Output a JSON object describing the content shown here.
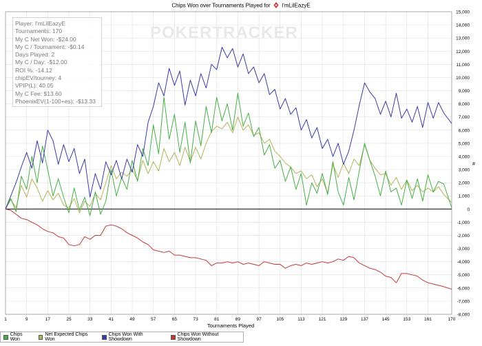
{
  "title_prefix": "Chips Won over Tournaments Played for",
  "player_name": "I'mLilEazyE",
  "watermark": "POKERTRACKER",
  "stats": [
    "Player: I'mLilEazyE",
    "Tournaments: 170",
    "My C Net Won: -$24.00",
    "My C / Tournament: -$0.14",
    "Days Played: 2",
    "My C / Day: -$12.00",
    "ROI %: -14.12",
    "chipEV/tourney: 4",
    "VPIP(L): 40.05",
    "My C Fee: $13.60",
    "PhoenixEV(1-100+es): -$13.33"
  ],
  "colors": {
    "chips_won": "#44b044",
    "net_expected": "#b3b356",
    "with_showdown": "#3a3aa6",
    "without_showdown": "#c03838",
    "grid": "#e2e2e2",
    "zero_line": "#000000"
  },
  "chart_data": {
    "type": "line",
    "title": "Chips Won over Tournaments Played for I'mLilEazyE",
    "xlabel": "Tournaments Played",
    "ylabel": "#",
    "xlim": [
      1,
      170
    ],
    "ylim": [
      -8000,
      15000
    ],
    "x_ticks": [
      1,
      9,
      17,
      25,
      33,
      41,
      49,
      57,
      65,
      73,
      81,
      89,
      97,
      105,
      113,
      121,
      129,
      137,
      145,
      153,
      161,
      170
    ],
    "y_ticks": [
      -8000,
      -7000,
      -6000,
      -5000,
      -4000,
      -3000,
      -2000,
      -1000,
      0,
      1000,
      2000,
      3000,
      4000,
      5000,
      6000,
      7000,
      8000,
      9000,
      10000,
      11000,
      12000,
      13000,
      14000,
      15000
    ],
    "y_tick_labels": [
      "-8,000",
      "-7,000",
      "-6,000",
      "-5,000",
      "-4,000",
      "-3,000",
      "-2,000",
      "-1,000",
      "0",
      "1,000",
      "2,000",
      "3,000",
      "4,000",
      "5,000",
      "6,000",
      "7,000",
      "8,000",
      "9,000",
      "10,000",
      "11,000",
      "12,000",
      "13,000",
      "14,000",
      "15,000"
    ],
    "grid": true,
    "legend_position": "bottom-left",
    "series": [
      {
        "name": "Chips Won",
        "x": [
          1,
          3,
          5,
          7,
          9,
          11,
          13,
          15,
          17,
          19,
          21,
          23,
          25,
          27,
          29,
          31,
          33,
          35,
          37,
          39,
          41,
          43,
          45,
          47,
          49,
          51,
          53,
          55,
          57,
          59,
          61,
          63,
          65,
          67,
          69,
          71,
          73,
          75,
          77,
          79,
          81,
          83,
          85,
          87,
          89,
          91,
          93,
          95,
          97,
          99,
          101,
          103,
          105,
          107,
          109,
          111,
          113,
          115,
          117,
          119,
          121,
          123,
          125,
          127,
          129,
          131,
          133,
          135,
          137,
          139,
          141,
          143,
          145,
          147,
          149,
          151,
          153,
          155,
          157,
          159,
          161,
          163,
          165,
          167,
          170
        ],
        "y": [
          0,
          800,
          -200,
          2500,
          1500,
          4000,
          2000,
          4800,
          3000,
          1000,
          2300,
          900,
          -300,
          1600,
          -100,
          900,
          -500,
          1300,
          -400,
          600,
          3000,
          1000,
          2400,
          1500,
          3700,
          2100,
          4600,
          3300,
          6400,
          4200,
          8500,
          5300,
          7200,
          4300,
          6600,
          3500,
          6700,
          4800,
          7800,
          5800,
          8500,
          6700,
          8000,
          6000,
          8800,
          6300,
          7300,
          5500,
          6200,
          4100,
          4900,
          3100,
          3700,
          2100,
          3200,
          1500,
          2700,
          300,
          2000,
          1200,
          2700,
          1100,
          3600,
          1300,
          300,
          2400,
          700,
          2900,
          5000,
          3700,
          2500,
          1000,
          2900,
          1300,
          1600,
          300,
          2200,
          800,
          2300,
          600,
          2600,
          1300,
          2100,
          1900,
          100
        ]
      },
      {
        "name": "Net Expected Chips Won",
        "x": [
          1,
          3,
          5,
          7,
          9,
          11,
          13,
          15,
          17,
          19,
          21,
          23,
          25,
          27,
          29,
          31,
          33,
          35,
          37,
          39,
          41,
          43,
          45,
          47,
          49,
          51,
          53,
          55,
          57,
          59,
          61,
          63,
          65,
          67,
          69,
          71,
          73,
          75,
          77,
          79,
          81,
          83,
          85,
          87,
          89,
          91,
          93,
          95,
          97,
          99,
          101,
          103,
          105,
          107,
          109,
          111,
          113,
          115,
          117,
          119,
          121,
          123,
          125,
          127,
          129,
          131,
          133,
          135,
          137,
          139,
          141,
          143,
          145,
          147,
          149,
          151,
          153,
          155,
          157,
          159,
          161,
          163,
          165,
          167,
          170
        ],
        "y": [
          0,
          700,
          100,
          1800,
          900,
          2300,
          1600,
          600,
          1400,
          700,
          1200,
          300,
          100,
          800,
          -300,
          600,
          200,
          1200,
          700,
          2000,
          3300,
          2300,
          2800,
          2500,
          3000,
          2200,
          3700,
          2700,
          3600,
          2900,
          4600,
          3600,
          4300,
          3300,
          4700,
          3600,
          4700,
          3800,
          5000,
          5900,
          6300,
          6100,
          6600,
          5800,
          7000,
          6000,
          6400,
          5600,
          5800,
          5000,
          5300,
          4400,
          4000,
          3500,
          3200,
          2700,
          2900,
          2300,
          2600,
          1700,
          2300,
          1200,
          3400,
          2400,
          3500,
          2700,
          3800,
          3300,
          4900,
          3700,
          3100,
          2600,
          2700,
          1800,
          2400,
          1500,
          2200,
          1400,
          1800,
          1300,
          1600,
          1300,
          1700,
          1100,
          500
        ]
      },
      {
        "name": "Chips Won With Showdown",
        "x": [
          1,
          3,
          5,
          7,
          9,
          11,
          13,
          15,
          17,
          19,
          21,
          23,
          25,
          27,
          29,
          31,
          33,
          35,
          37,
          39,
          41,
          43,
          45,
          47,
          49,
          51,
          53,
          55,
          57,
          59,
          61,
          63,
          65,
          67,
          69,
          71,
          73,
          75,
          77,
          79,
          81,
          83,
          85,
          87,
          89,
          91,
          93,
          95,
          97,
          99,
          101,
          103,
          105,
          107,
          109,
          111,
          113,
          115,
          117,
          119,
          121,
          123,
          125,
          127,
          129,
          131,
          133,
          135,
          137,
          139,
          141,
          143,
          145,
          147,
          149,
          151,
          153,
          155,
          157,
          159,
          161,
          163,
          165,
          167,
          170
        ],
        "y": [
          0,
          1000,
          2000,
          3200,
          4300,
          3100,
          5200,
          3500,
          6000,
          5200,
          3400,
          4900,
          3600,
          4600,
          2700,
          3800,
          900,
          2700,
          1500,
          3600,
          2600,
          3700,
          2300,
          3800,
          2800,
          4900,
          4000,
          6600,
          7800,
          9600,
          8600,
          10700,
          9400,
          10500,
          7900,
          9800,
          8600,
          10300,
          9200,
          11000,
          10600,
          12300,
          11500,
          12200,
          10800,
          11800,
          10300,
          10800,
          9600,
          10300,
          8700,
          9100,
          7600,
          8400,
          7200,
          7700,
          6000,
          6800,
          5400,
          6200,
          4600,
          5300,
          4000,
          5000,
          3400,
          4400,
          6000,
          7900,
          9600,
          8900,
          8400,
          7200,
          8200,
          7000,
          8800,
          6900,
          7600,
          6600,
          7800,
          6200,
          8100,
          6900,
          8100,
          7300,
          6500
        ]
      },
      {
        "name": "Chips Won Without Showdown",
        "x": [
          1,
          3,
          5,
          7,
          9,
          11,
          13,
          15,
          17,
          19,
          21,
          23,
          25,
          27,
          29,
          31,
          33,
          35,
          37,
          39,
          41,
          43,
          45,
          47,
          49,
          51,
          53,
          55,
          57,
          59,
          61,
          63,
          65,
          67,
          69,
          71,
          73,
          75,
          77,
          79,
          81,
          83,
          85,
          87,
          89,
          91,
          93,
          95,
          97,
          99,
          101,
          103,
          105,
          107,
          109,
          111,
          113,
          115,
          117,
          119,
          121,
          123,
          125,
          127,
          129,
          131,
          133,
          135,
          137,
          139,
          141,
          143,
          145,
          147,
          149,
          151,
          153,
          155,
          157,
          159,
          161,
          163,
          165,
          167,
          170
        ],
        "y": [
          0,
          -100,
          -400,
          -700,
          -800,
          -1000,
          -1200,
          -1500,
          -1700,
          -1800,
          -2100,
          -2200,
          -2700,
          -2800,
          -2700,
          -2100,
          -2300,
          -2000,
          -2000,
          -1300,
          -1200,
          -1300,
          -1500,
          -1800,
          -2000,
          -2200,
          -2500,
          -2700,
          -3100,
          -3200,
          -3300,
          -3200,
          -3500,
          -3500,
          -3600,
          -3700,
          -3700,
          -3800,
          -3900,
          -4300,
          -4100,
          -4100,
          -4000,
          -4100,
          -4000,
          -4200,
          -4100,
          -4200,
          -4300,
          -4000,
          -4100,
          -4200,
          -4200,
          -4500,
          -4300,
          -4200,
          -4300,
          -4100,
          -4200,
          -4100,
          -4000,
          -4100,
          -4000,
          -3800,
          -3900,
          -3600,
          -3700,
          -4100,
          -4300,
          -4500,
          -4600,
          -4800,
          -5100,
          -5200,
          -5600,
          -4900,
          -4900,
          -5000,
          -5100,
          -5400,
          -5600,
          -5700,
          -5800,
          -5900,
          -6100
        ]
      }
    ]
  }
}
